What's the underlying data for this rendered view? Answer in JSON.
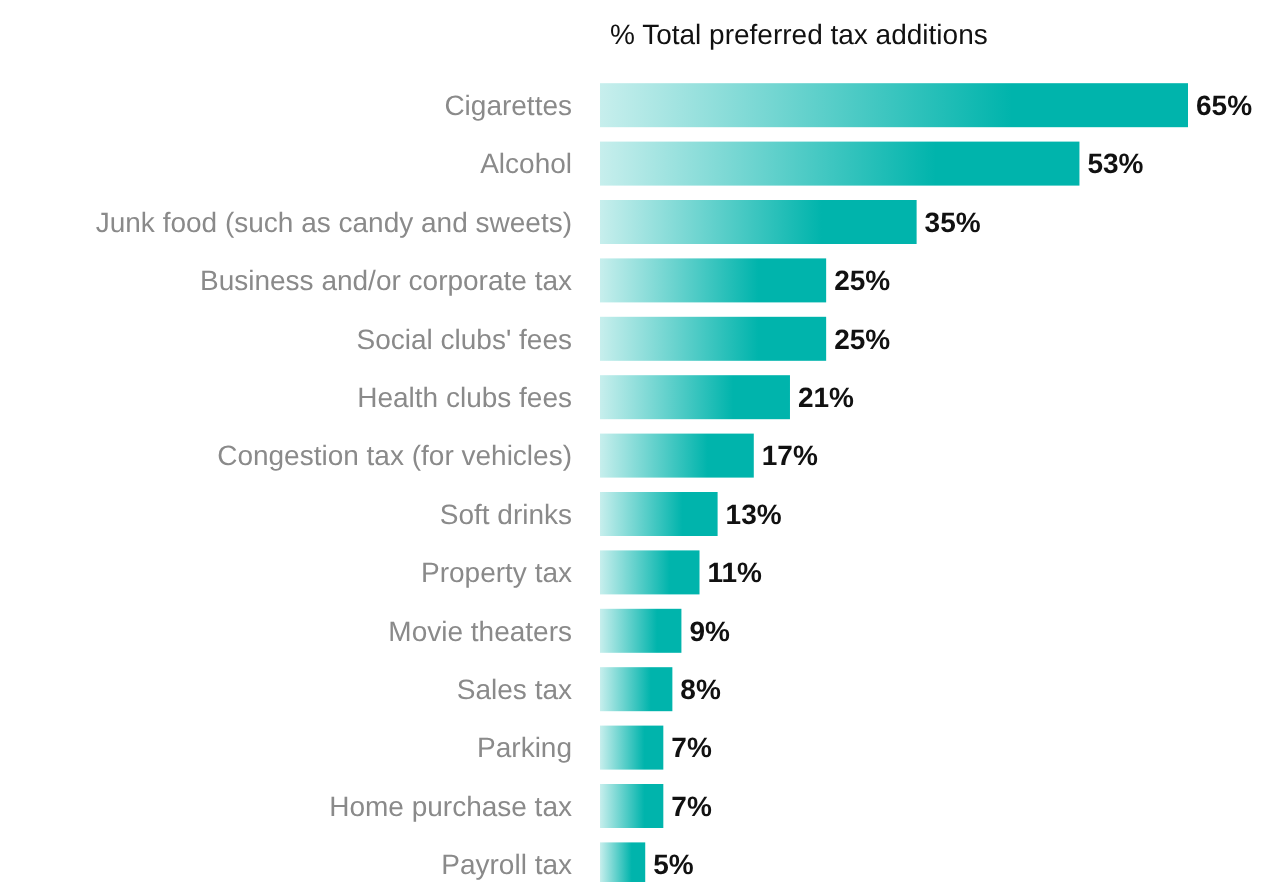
{
  "chart_data": {
    "type": "bar",
    "orientation": "horizontal",
    "title": "% Total preferred tax additions",
    "categories": [
      "Cigarettes",
      "Alcohol",
      "Junk food (such as candy and sweets)",
      "Business and/or corporate tax",
      "Social clubs' fees",
      "Health clubs fees",
      "Congestion tax (for vehicles)",
      "Soft drinks",
      "Property tax",
      "Movie theaters",
      "Sales tax",
      "Parking",
      "Home purchase tax",
      "Payroll tax"
    ],
    "values": [
      65,
      53,
      35,
      25,
      25,
      21,
      17,
      13,
      11,
      9,
      8,
      7,
      7,
      5
    ],
    "value_labels": [
      "65%",
      "53%",
      "35%",
      "25%",
      "25%",
      "21%",
      "17%",
      "13%",
      "11%",
      "9%",
      "8%",
      "7%",
      "7%",
      "5%"
    ],
    "color": "#00b4ac"
  }
}
